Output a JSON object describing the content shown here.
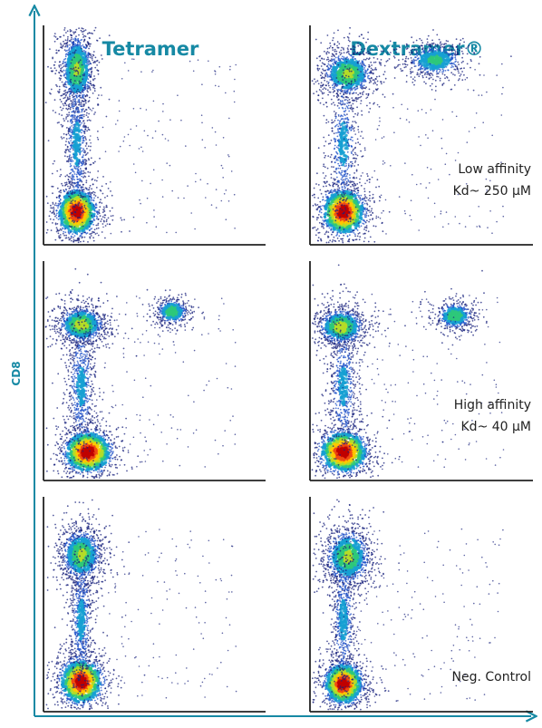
{
  "chart_data": {
    "type": "scatter",
    "column_titles": [
      "Tetramer",
      "Dextramer®"
    ],
    "ylabel": "CD8",
    "xlabel": "",
    "colors": {
      "axis_accent": "#1689a4",
      "panel_axis": "#222222",
      "density_ramp": [
        "#1a237e",
        "#1e50c8",
        "#16a0d2",
        "#2ec87a",
        "#b4dc28",
        "#ffc800",
        "#f04a14",
        "#c00000"
      ]
    },
    "panels": [
      {
        "row": 0,
        "column": 0,
        "annotation": [],
        "populations": [
          {
            "x": 0.15,
            "y": 0.8,
            "sx": 0.035,
            "sy": 0.08,
            "n": 1100,
            "peak": 0.55
          },
          {
            "x": 0.15,
            "y": 0.15,
            "sx": 0.045,
            "sy": 0.055,
            "n": 1200,
            "peak": 1.0
          },
          {
            "x": 0.15,
            "y": 0.46,
            "sx": 0.025,
            "sy": 0.16,
            "n": 700,
            "peak": 0.3
          }
        ]
      },
      {
        "row": 0,
        "column": 1,
        "annotation": [
          "Low affinity",
          "Kd~ 250 µM"
        ],
        "populations": [
          {
            "x": 0.17,
            "y": 0.78,
            "sx": 0.055,
            "sy": 0.05,
            "n": 1000,
            "peak": 0.55
          },
          {
            "x": 0.56,
            "y": 0.84,
            "sx": 0.06,
            "sy": 0.035,
            "n": 650,
            "peak": 0.45
          },
          {
            "x": 0.15,
            "y": 0.15,
            "sx": 0.05,
            "sy": 0.055,
            "n": 1200,
            "peak": 1.0
          },
          {
            "x": 0.15,
            "y": 0.46,
            "sx": 0.03,
            "sy": 0.16,
            "n": 600,
            "peak": 0.3
          }
        ]
      },
      {
        "row": 1,
        "column": 0,
        "annotation": [],
        "populations": [
          {
            "x": 0.17,
            "y": 0.71,
            "sx": 0.05,
            "sy": 0.04,
            "n": 1000,
            "peak": 0.6
          },
          {
            "x": 0.58,
            "y": 0.77,
            "sx": 0.035,
            "sy": 0.028,
            "n": 450,
            "peak": 0.5
          },
          {
            "x": 0.2,
            "y": 0.13,
            "sx": 0.055,
            "sy": 0.05,
            "n": 1200,
            "peak": 1.0
          },
          {
            "x": 0.17,
            "y": 0.43,
            "sx": 0.03,
            "sy": 0.14,
            "n": 700,
            "peak": 0.3
          }
        ]
      },
      {
        "row": 1,
        "column": 1,
        "annotation": [
          "High affinity",
          "Kd~ 40 µM"
        ],
        "populations": [
          {
            "x": 0.14,
            "y": 0.7,
            "sx": 0.05,
            "sy": 0.04,
            "n": 1000,
            "peak": 0.6
          },
          {
            "x": 0.65,
            "y": 0.75,
            "sx": 0.04,
            "sy": 0.03,
            "n": 500,
            "peak": 0.5
          },
          {
            "x": 0.15,
            "y": 0.13,
            "sx": 0.055,
            "sy": 0.05,
            "n": 1200,
            "peak": 1.0
          },
          {
            "x": 0.15,
            "y": 0.43,
            "sx": 0.03,
            "sy": 0.14,
            "n": 650,
            "peak": 0.3
          }
        ]
      },
      {
        "row": 2,
        "column": 0,
        "annotation": [],
        "populations": [
          {
            "x": 0.17,
            "y": 0.73,
            "sx": 0.045,
            "sy": 0.06,
            "n": 1100,
            "peak": 0.55
          },
          {
            "x": 0.17,
            "y": 0.14,
            "sx": 0.05,
            "sy": 0.055,
            "n": 1200,
            "peak": 1.0
          },
          {
            "x": 0.17,
            "y": 0.43,
            "sx": 0.025,
            "sy": 0.15,
            "n": 650,
            "peak": 0.3
          }
        ]
      },
      {
        "row": 2,
        "column": 1,
        "annotation": [
          "Neg. Control"
        ],
        "populations": [
          {
            "x": 0.17,
            "y": 0.72,
            "sx": 0.05,
            "sy": 0.065,
            "n": 1100,
            "peak": 0.55
          },
          {
            "x": 0.15,
            "y": 0.13,
            "sx": 0.045,
            "sy": 0.05,
            "n": 1200,
            "peak": 1.0
          },
          {
            "x": 0.15,
            "y": 0.43,
            "sx": 0.025,
            "sy": 0.15,
            "n": 650,
            "peak": 0.3
          }
        ]
      }
    ]
  }
}
